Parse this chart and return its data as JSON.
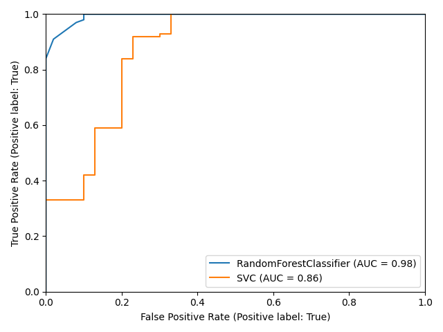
{
  "rf_fpr": [
    0.0,
    0.0,
    0.0,
    0.0,
    0.02,
    0.04,
    0.06,
    0.08,
    0.1,
    0.1,
    0.1,
    1.0
  ],
  "rf_tpr": [
    0.0,
    0.58,
    0.65,
    0.84,
    0.91,
    0.93,
    0.95,
    0.97,
    0.98,
    1.0,
    1.0,
    1.0
  ],
  "svc_fpr": [
    0.0,
    0.0,
    0.1,
    0.1,
    0.13,
    0.13,
    0.2,
    0.2,
    0.23,
    0.23,
    0.3,
    0.3,
    0.33,
    0.33,
    1.0
  ],
  "svc_tpr": [
    0.0,
    0.33,
    0.33,
    0.42,
    0.42,
    0.59,
    0.59,
    0.84,
    0.84,
    0.92,
    0.92,
    0.93,
    0.93,
    1.0,
    1.0
  ],
  "rf_label": "RandomForestClassifier (AUC = 0.98)",
  "svc_label": "SVC (AUC = 0.86)",
  "rf_color": "#1f77b4",
  "svc_color": "#ff7f0e",
  "xlabel": "False Positive Rate (Positive label: True)",
  "ylabel": "True Positive Rate (Positive label: True)",
  "xlim": [
    0.0,
    1.0
  ],
  "ylim": [
    0.0,
    1.0
  ],
  "legend_loc": "lower right",
  "linewidth": 1.5
}
